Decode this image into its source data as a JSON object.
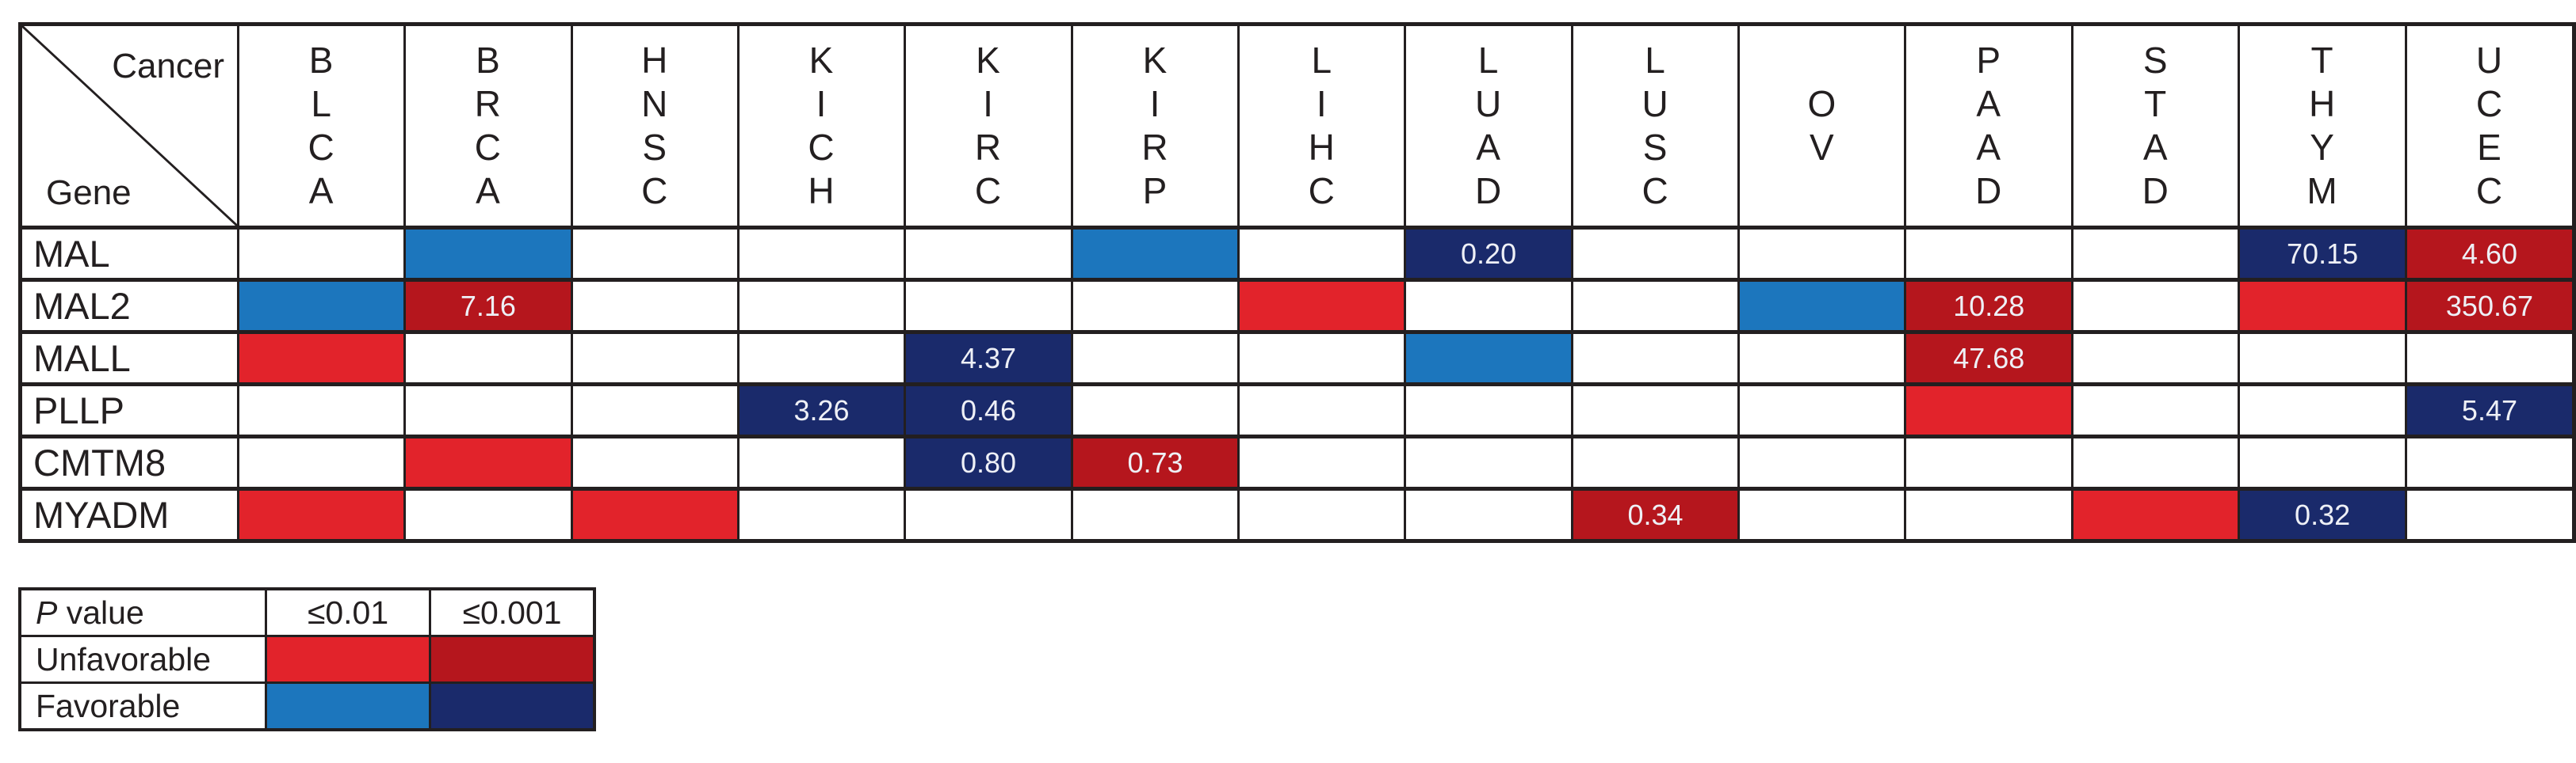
{
  "corner": {
    "top_label": "Cancer",
    "bottom_label": "Gene"
  },
  "chart_data": {
    "type": "heatmap",
    "xlabel": "Cancer",
    "ylabel": "Gene",
    "columns": [
      "BLCA",
      "BRCA",
      "HNSC",
      "KICH",
      "KIRC",
      "KIRP",
      "LIHC",
      "LUAD",
      "LUSC",
      "OV",
      "PAAD",
      "STAD",
      "THYM",
      "UCEC"
    ],
    "rows": [
      "MAL",
      "MAL2",
      "MALL",
      "PLLP",
      "CMTM8",
      "MYADM"
    ],
    "cell_codes": {
      "R": "unfavorable, p<=0.01 (red)",
      "DR": "unfavorable, p<=0.001 (dark red)",
      "B": "favorable, p<=0.01 (blue)",
      "NB": "favorable, p<=0.001 (dark navy)",
      "value_after_colon": "number printed inside the cell",
      "empty_string": "no significant association (white cell)"
    },
    "grid": [
      [
        "",
        "B",
        "",
        "",
        "",
        "B",
        "",
        "NB:0.20",
        "",
        "",
        "",
        "",
        "NB:70.15",
        "DR:4.60"
      ],
      [
        "B",
        "DR:7.16",
        "",
        "",
        "",
        "",
        "R",
        "",
        "",
        "B",
        "DR:10.28",
        "",
        "R",
        "DR:350.67"
      ],
      [
        "R",
        "",
        "",
        "",
        "NB:4.37",
        "",
        "",
        "B",
        "",
        "",
        "DR:47.68",
        "",
        "",
        ""
      ],
      [
        "",
        "",
        "",
        "NB:3.26",
        "NB:0.46",
        "",
        "",
        "",
        "",
        "",
        "R",
        "",
        "",
        "NB:5.47"
      ],
      [
        "",
        "R",
        "",
        "",
        "NB:0.80",
        "DR:0.73",
        "",
        "",
        "",
        "",
        "",
        "",
        "",
        ""
      ],
      [
        "R",
        "",
        "R",
        "",
        "",
        "",
        "",
        "",
        "DR:0.34",
        "",
        "",
        "R",
        "NB:0.32",
        ""
      ]
    ]
  },
  "legend": {
    "p_label_italic": "P",
    "p_label_rest": " value",
    "thresholds": [
      "≤0.01",
      "≤0.001"
    ],
    "unfavorable_label": "Unfavorable",
    "favorable_label": "Favorable"
  },
  "colors": {
    "red": "#e2232b",
    "dark_red": "#b5161d",
    "blue": "#1c76bd",
    "dark_blue": "#1a2a6b",
    "border": "#231f20",
    "cell_text": "#eef0f6"
  }
}
